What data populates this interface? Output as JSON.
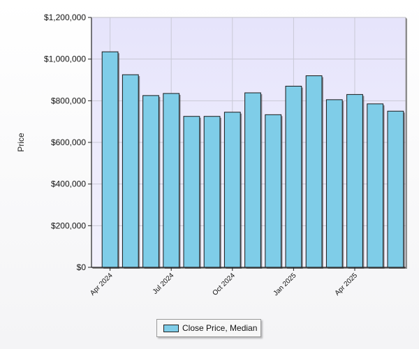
{
  "colors": {
    "bar_fill": "#7fcde8",
    "bar_stroke": "#1a1a1a",
    "plot_bg_top": "#e6e4fb",
    "plot_bg_bottom": "#f2f1fd",
    "grid": "#c9c9d6"
  },
  "chart_data": {
    "type": "bar",
    "title": "",
    "xlabel": "",
    "ylabel": "Price",
    "ylim": [
      0,
      1200000
    ],
    "yticks": [
      "$0",
      "$200,000",
      "$400,000",
      "$600,000",
      "$800,000",
      "$1,000,000",
      "$1,200,000"
    ],
    "ytick_values": [
      0,
      200000,
      400000,
      600000,
      800000,
      1000000,
      1200000
    ],
    "categories": [
      "2024-04",
      "2024-05",
      "2024-06",
      "2024-07",
      "2024-08",
      "2024-09",
      "2024-10",
      "2024-11",
      "2024-12",
      "2025-01",
      "2025-02",
      "2025-03",
      "2025-04",
      "2025-05",
      "2025-06"
    ],
    "xtick_labels": [
      {
        "index": 0,
        "label": "Apr 2024"
      },
      {
        "index": 3,
        "label": "Jul 2024"
      },
      {
        "index": 6,
        "label": "Oct 2024"
      },
      {
        "index": 9,
        "label": "Jan 2025"
      },
      {
        "index": 12,
        "label": "Apr 2025"
      }
    ],
    "series": [
      {
        "name": "Close Price, Median",
        "values": [
          1035000,
          925000,
          825000,
          835000,
          725000,
          725000,
          745000,
          838000,
          733000,
          870000,
          920000,
          805000,
          830000,
          785000,
          750000
        ]
      }
    ],
    "grid": true,
    "legend_position": "bottom-center"
  },
  "legend": {
    "label": "Close Price, Median"
  }
}
